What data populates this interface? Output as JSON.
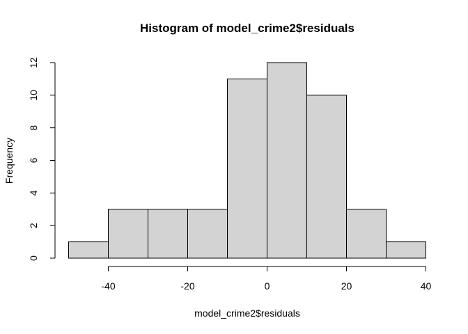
{
  "chart_data": {
    "type": "bar",
    "title": "Histogram of model_crime2$residuals",
    "xlabel": "model_crime2$residuals",
    "ylabel": "Frequency",
    "bin_edges": [
      -50,
      -40,
      -30,
      -20,
      -10,
      0,
      10,
      20,
      30,
      40
    ],
    "values": [
      1,
      3,
      3,
      3,
      11,
      12,
      10,
      3,
      1
    ],
    "xlim": [
      -50,
      40
    ],
    "ylim": [
      0,
      12
    ],
    "x_ticks": [
      -40,
      -20,
      0,
      20,
      40
    ],
    "y_ticks": [
      0,
      2,
      4,
      6,
      8,
      10,
      12
    ],
    "grid": false,
    "colors": {
      "bar_fill": "#d3d3d3",
      "bar_stroke": "#000000"
    }
  }
}
